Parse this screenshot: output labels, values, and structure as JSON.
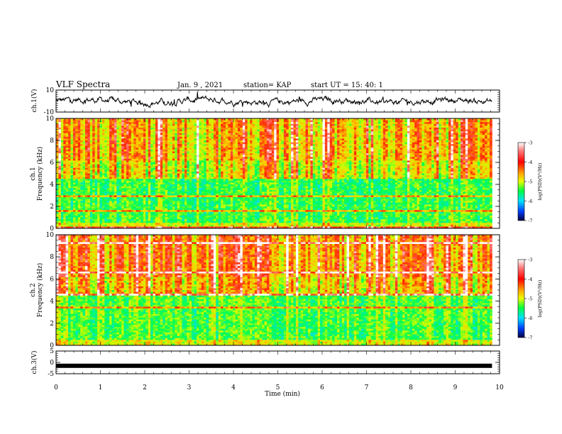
{
  "header": {
    "title": "VLF Spectra",
    "date": "Jan. 9 , 2021",
    "station": "station= KAP",
    "start": "start UT =  15: 40: 1"
  },
  "chart_data": [
    {
      "type": "line",
      "name": "ch1-waveform",
      "ylabel": "ch.1(V)",
      "xlim": [
        0,
        10
      ],
      "ylim": [
        -10,
        10
      ],
      "yticks": [
        "10",
        "-10"
      ],
      "x_end": 9.83,
      "y_mean": 0,
      "y_range": [
        -10,
        10
      ]
    },
    {
      "type": "heatmap",
      "name": "ch1-spectrogram",
      "ylabel": "Frequency (kHz)",
      "ylabel_ch": "ch.1",
      "xlim": [
        0,
        10
      ],
      "ylim": [
        0,
        10
      ],
      "yticks": [
        "0",
        "2",
        "4",
        "6",
        "8",
        "10"
      ],
      "colorbar": {
        "label": "log(PSD)(V²/Hz)",
        "range": [
          -7,
          -3
        ],
        "ticks": [
          "-3",
          "-4",
          "-5",
          "-6",
          "-7"
        ]
      }
    },
    {
      "type": "heatmap",
      "name": "ch2-spectrogram",
      "ylabel": "Frequency (kHz)",
      "ylabel_ch": "ch.2",
      "xlim": [
        0,
        10
      ],
      "ylim": [
        0,
        10
      ],
      "yticks": [
        "0",
        "2",
        "4",
        "6",
        "8",
        "10"
      ],
      "colorbar": {
        "label": "log(PSD)(V²/Hz)",
        "range": [
          -7,
          -3
        ],
        "ticks": [
          "-3",
          "-4",
          "-5",
          "-6",
          "-7"
        ]
      }
    },
    {
      "type": "line",
      "name": "ch3-waveform",
      "ylabel": "ch.3(V)",
      "xlim": [
        0,
        10
      ],
      "ylim": [
        -5,
        5
      ],
      "yticks": [
        "5",
        "0",
        "-5"
      ],
      "x_end": 9.83,
      "y_mean": -1.5
    }
  ],
  "xaxis": {
    "label": "Time (min)",
    "ticks": [
      "0",
      "1",
      "2",
      "3",
      "4",
      "5",
      "6",
      "7",
      "8",
      "9",
      "10"
    ]
  }
}
